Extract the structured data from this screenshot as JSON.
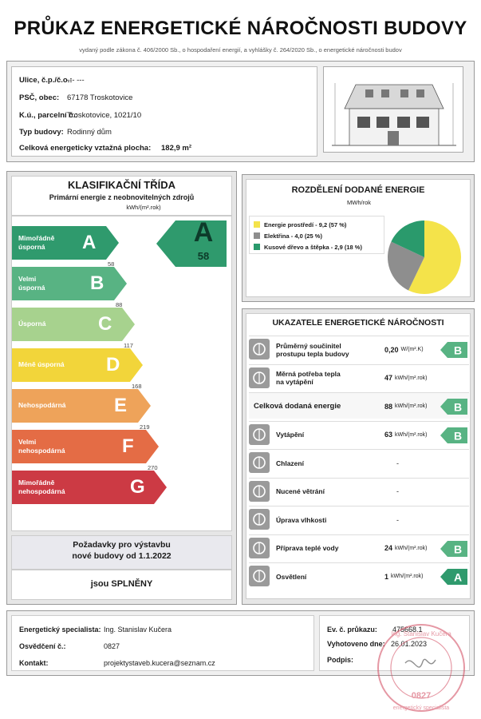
{
  "header": {
    "title": "PRŮKAZ ENERGETICKÉ NÁROČNOSTI BUDOVY",
    "subtitle": "vydaný podle zákona č. 406/2000 Sb., o hospodaření energií, a vyhlášky č. 264/2020 Sb., o energetické náročnosti budov"
  },
  "info": {
    "street_label": "Ulice, č.p./č.o.:",
    "street_value": "--- ---",
    "city_label": "PSČ, obec:",
    "city_value": "67178 Troskotovice",
    "ku_label": "K.ú., parcelní č.:",
    "ku_value": "Troskotovice, 1021/10",
    "type_label": "Typ budovy:",
    "type_value": "Rodinný dům",
    "area_label": "Celková energeticky vztažná plocha:",
    "area_value": "182,9 m²"
  },
  "classification": {
    "title": "KLASIFIKAČNÍ TŘÍDA",
    "subtitle": "Primární energie z neobnovitelných zdrojů",
    "unit": "kWh/(m².rok)",
    "result_letter": "A",
    "result_value": "58",
    "result_color": "#2f9a6d",
    "classes": [
      {
        "letter": "A",
        "label": "Mimořádně\núsporná",
        "color": "#2f9a6d",
        "threshold": "58"
      },
      {
        "letter": "B",
        "label": "Velmi\núsporná",
        "color": "#58b383",
        "threshold": "88"
      },
      {
        "letter": "C",
        "label": "Úsporná",
        "color": "#a7d28e",
        "threshold": "117"
      },
      {
        "letter": "D",
        "label": "Méně úsporná",
        "color": "#f2d53a",
        "threshold": "168"
      },
      {
        "letter": "E",
        "label": "Nehospodárná",
        "color": "#eea35a",
        "threshold": "219"
      },
      {
        "letter": "F",
        "label": "Velmi\nnehospodárná",
        "color": "#e46c45",
        "threshold": "270"
      },
      {
        "letter": "G",
        "label": "Mimořádně\nnehospodárná",
        "color": "#cc3a44",
        "threshold": ""
      }
    ],
    "requirements_line1": "Požadavky pro výstavbu",
    "requirements_line2": "nové budovy od 1.1.2022",
    "requirements_result": "jsou SPLNĚNY"
  },
  "distribution": {
    "title": "ROZDĚLENÍ DODANÉ ENERGIE",
    "unit": "MWh/rok",
    "items": [
      {
        "label": "Energie prostředí - 9,2 (57 %)",
        "value": 9.2,
        "percent": 57,
        "color": "#f4e34a"
      },
      {
        "label": "Elektřina - 4,0 (25 %)",
        "value": 4.0,
        "percent": 25,
        "color": "#8e8e8e"
      },
      {
        "label": "Kusové dřevo a štěpka - 2,9 (18 %)",
        "value": 2.9,
        "percent": 18,
        "color": "#2a9a6c"
      }
    ]
  },
  "indicators": {
    "title": "UKAZATELE ENERGETICKÉ NÁROČNOSTI",
    "rows": [
      {
        "icon": "house-envelope-icon",
        "label": "Průměrný součinitel\nprostupu tepla budovy",
        "value": "0,20",
        "unit": "W/(m².K)",
        "grade": "B",
        "grade_color": "#58b383"
      },
      {
        "icon": "heat-demand-icon",
        "label": "Měrná potřeba tepla\nna vytápění",
        "value": "47",
        "unit": "kWh/(m².rok)",
        "grade": "",
        "grade_color": ""
      },
      {
        "icon": "",
        "label": "Celková dodaná energie",
        "value": "88",
        "unit": "kWh/(m².rok)",
        "grade": "B",
        "grade_color": "#58b383"
      },
      {
        "icon": "thermometer-icon",
        "label": "Vytápění",
        "value": "63",
        "unit": "kWh/(m².rok)",
        "grade": "B",
        "grade_color": "#58b383"
      },
      {
        "icon": "cooling-icon",
        "label": "Chlazení",
        "value": "-",
        "unit": "",
        "grade": "",
        "grade_color": ""
      },
      {
        "icon": "fan-icon",
        "label": "Nucené větrání",
        "value": "-",
        "unit": "",
        "grade": "",
        "grade_color": ""
      },
      {
        "icon": "humidity-icon",
        "label": "Úprava vlhkosti",
        "value": "-",
        "unit": "",
        "grade": "",
        "grade_color": ""
      },
      {
        "icon": "water-tap-icon",
        "label": "Příprava teplé vody",
        "value": "24",
        "unit": "kWh/(m².rok)",
        "grade": "B",
        "grade_color": "#58b383"
      },
      {
        "icon": "light-bulb-icon",
        "label": "Osvětlení",
        "value": "1",
        "unit": "kWh/(m².rok)",
        "grade": "A",
        "grade_color": "#2f9a6d"
      }
    ]
  },
  "footer": {
    "specialist_label": "Energetický specialista:",
    "specialist_value": "Ing. Stanislav Kučera",
    "cert_label": "Osvědčení č.:",
    "cert_value": "0827",
    "contact_label": "Kontakt:",
    "contact_value": "projektystaveb.kucera@seznam.cz",
    "record_label": "Ev. č. průkazu:",
    "record_value": "475668.1",
    "issued_label": "Vyhotoveno dne:",
    "issued_value": "26.01.2023",
    "sign_label": "Podpis:",
    "stamp_text_top": "Ing. Stanislav Kučera",
    "stamp_text_mid": "energetický specialista",
    "stamp_number": "0827"
  }
}
